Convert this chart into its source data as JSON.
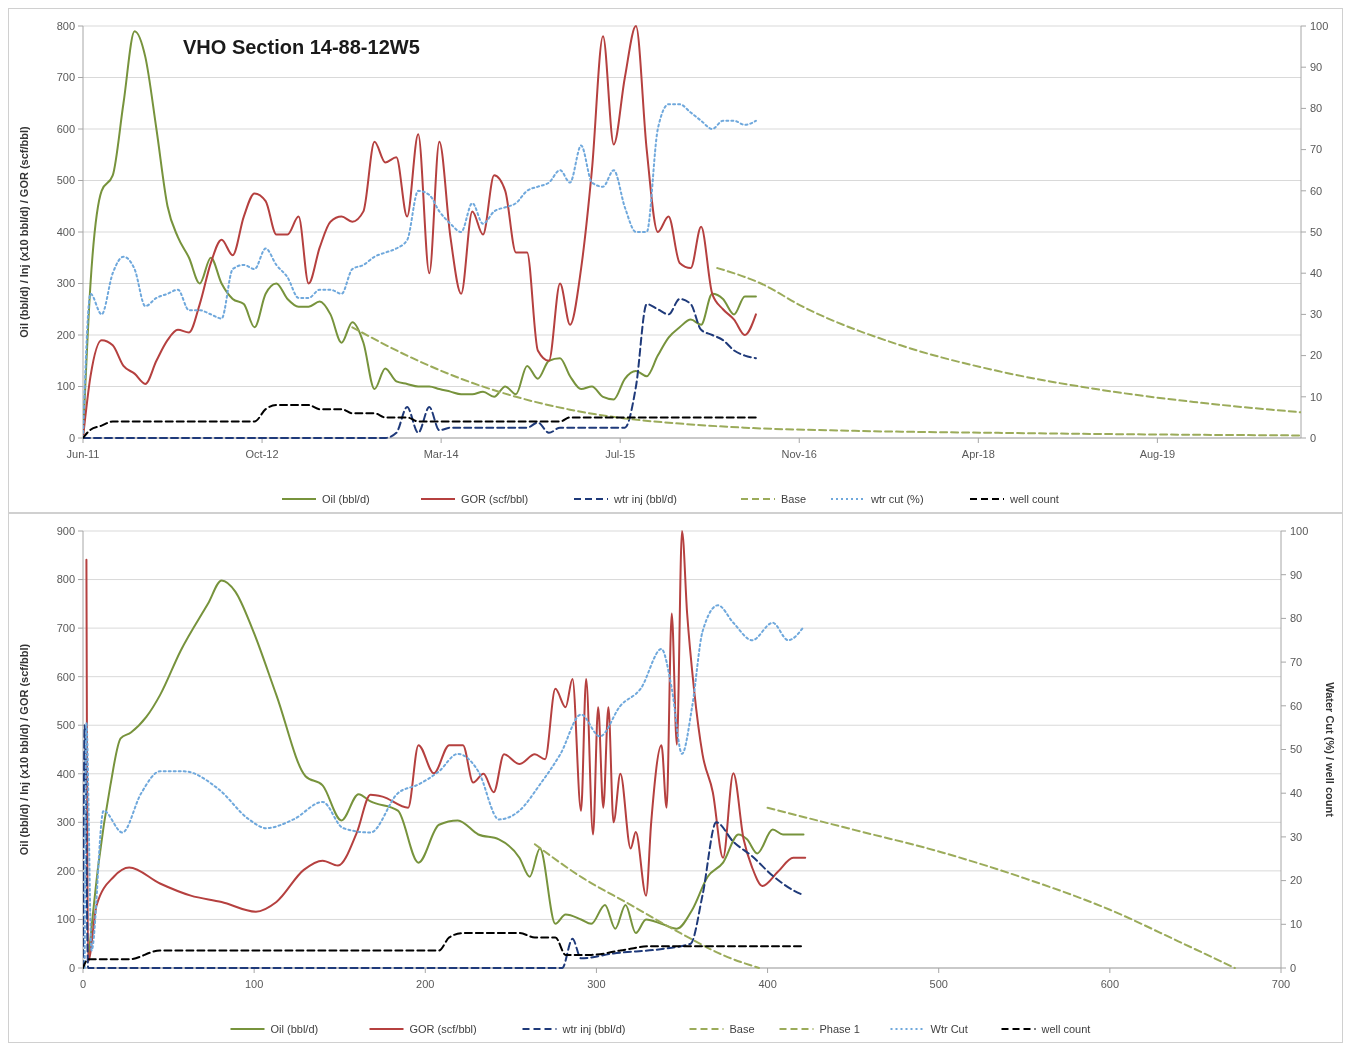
{
  "chart_data": [
    {
      "type": "line",
      "title": "VHO Section 14-88-12W5",
      "ylabel": "Oil (bbl/d) / Inj (x10 bbl/d) / GOR (scf/bbl)",
      "xlim": [
        "2011-06-10",
        "2020-10-01"
      ],
      "xticks": [
        {
          "value": "2011-06-10",
          "label": "Jun-11"
        },
        {
          "value": "2012-10-22",
          "label": "Oct-12"
        },
        {
          "value": "2014-03-06",
          "label": "Mar-14"
        },
        {
          "value": "2015-07-19",
          "label": "Jul-15"
        },
        {
          "value": "2016-11-30",
          "label": "Nov-16"
        },
        {
          "value": "2018-04-14",
          "label": "Apr-18"
        },
        {
          "value": "2019-08-27",
          "label": "Aug-19"
        }
      ],
      "ylim": [
        0,
        800
      ],
      "yticks": [
        0,
        100,
        200,
        300,
        400,
        500,
        600,
        700,
        800
      ],
      "y2lim": [
        0,
        100
      ],
      "y2ticks": [
        0,
        10,
        20,
        30,
        40,
        50,
        60,
        70,
        80,
        90,
        100
      ],
      "grid": "y",
      "legend": "bottom",
      "x": [
        "2011-06-10",
        "2011-07",
        "2011-08",
        "2011-09",
        "2011-10",
        "2011-11",
        "2011-12",
        "2012-01",
        "2012-02",
        "2012-03",
        "2012-04",
        "2012-05",
        "2012-06",
        "2012-07",
        "2012-08",
        "2012-09",
        "2012-10",
        "2012-11",
        "2012-12",
        "2013-01",
        "2013-02",
        "2013-03",
        "2013-04",
        "2013-05",
        "2013-06",
        "2013-07",
        "2013-08",
        "2013-09",
        "2013-10",
        "2013-11",
        "2013-12",
        "2014-01",
        "2014-02",
        "2014-03",
        "2014-04",
        "2014-05",
        "2014-06",
        "2014-07",
        "2014-08",
        "2014-09",
        "2014-10",
        "2014-11",
        "2014-12",
        "2015-01",
        "2015-02",
        "2015-03",
        "2015-04",
        "2015-05",
        "2015-06",
        "2015-07",
        "2015-08",
        "2015-09",
        "2015-10",
        "2015-11",
        "2015-12",
        "2016-01",
        "2016-02",
        "2016-03",
        "2016-04",
        "2016-05",
        "2016-06",
        "2016-07",
        "2016-08"
      ],
      "series": [
        {
          "name": "Oil (bbl/d)",
          "color": "#77933c",
          "line_style": "solid",
          "values": [
            0,
            300,
            480,
            510,
            650,
            790,
            740,
            600,
            450,
            390,
            350,
            300,
            350,
            300,
            270,
            260,
            215,
            280,
            300,
            270,
            255,
            255,
            265,
            240,
            185,
            225,
            185,
            95,
            135,
            110,
            105,
            100,
            100,
            95,
            90,
            85,
            85,
            90,
            80,
            100,
            85,
            140,
            115,
            150,
            155,
            120,
            95,
            100,
            80,
            75,
            115,
            130,
            120,
            160,
            195,
            215,
            230,
            220,
            280,
            270,
            240,
            275,
            275
          ]
        },
        {
          "name": "GOR (scf/bbl)",
          "color": "#b5403f",
          "line_style": "solid",
          "values": [
            0,
            120,
            190,
            180,
            140,
            125,
            105,
            150,
            190,
            210,
            205,
            260,
            340,
            385,
            355,
            430,
            475,
            460,
            395,
            395,
            430,
            300,
            370,
            420,
            430,
            420,
            440,
            575,
            535,
            545,
            430,
            590,
            320,
            575,
            390,
            280,
            440,
            395,
            510,
            480,
            360,
            360,
            170,
            150,
            300,
            220,
            330,
            520,
            780,
            570,
            700,
            800,
            560,
            400,
            430,
            340,
            330,
            410,
            280,
            250,
            230,
            200,
            240
          ]
        },
        {
          "name": "wtr inj (bbl/d)",
          "color": "#1f3a7a",
          "line_style": "dashed",
          "values": [
            0,
            0,
            0,
            0,
            0,
            0,
            0,
            0,
            0,
            0,
            0,
            0,
            0,
            0,
            0,
            0,
            0,
            0,
            0,
            0,
            0,
            0,
            0,
            0,
            0,
            0,
            0,
            0,
            0,
            10,
            60,
            10,
            60,
            15,
            20,
            20,
            20,
            20,
            20,
            20,
            20,
            20,
            30,
            10,
            20,
            20,
            20,
            20,
            20,
            20,
            20,
            100,
            260,
            250,
            240,
            270,
            260,
            210,
            200,
            190,
            170,
            160,
            155
          ]
        },
        {
          "name": "Base",
          "color": "#9bab5a",
          "line_style": "dashed",
          "x": [
            "2013-07",
            "2013-12",
            "2014-05",
            "2014-10",
            "2015-03",
            "2015-08",
            "2016-01",
            "2016-07",
            "2017-04-25",
            "2018-06-08",
            "2019-07-22",
            "2020-10-01"
          ],
          "values": [
            215,
            160,
            115,
            80,
            55,
            38,
            28,
            20,
            14,
            10,
            7,
            5
          ]
        },
        {
          "color": "#9bab5a",
          "line_style": "dashed",
          "x": [
            "2016-04-15",
            "2016-08-15",
            "2016-12-10",
            "2017-09-09",
            "2018-06-08",
            "2019-03-08",
            "2019-12-06",
            "2020-10-01"
          ],
          "values": [
            330,
            300,
            255,
            180,
            130,
            95,
            70,
            50
          ]
        },
        {
          "name": "wtr cut (%)",
          "color": "#6fa8dc",
          "line_style": "dotted",
          "axis": "y2",
          "values": [
            0,
            35,
            30,
            40,
            44,
            41,
            32,
            34,
            35,
            36,
            31,
            31,
            30,
            29,
            41,
            42,
            41,
            46,
            42,
            39,
            34,
            34,
            36,
            36,
            35,
            41,
            42,
            44,
            45,
            46,
            48,
            60,
            59,
            55,
            52,
            50,
            57,
            52,
            55,
            56,
            57,
            60,
            61,
            62,
            65,
            62,
            71,
            62,
            61,
            65,
            56,
            50,
            50,
            75,
            81,
            81,
            79,
            77,
            75,
            77,
            77,
            76,
            77
          ]
        },
        {
          "name": "well count",
          "color": "#000000",
          "line_style": "dashed",
          "axis": "y2",
          "values": [
            0,
            2,
            3,
            4,
            4,
            4,
            4,
            4,
            4,
            4,
            4,
            4,
            4,
            4,
            4,
            4,
            4,
            7,
            8,
            8,
            8,
            8,
            7,
            7,
            7,
            6,
            6,
            6,
            5,
            5,
            5,
            4,
            4,
            4,
            4,
            4,
            4,
            4,
            4,
            4,
            4,
            4,
            4,
            4,
            4,
            5,
            5,
            5,
            5,
            5,
            5,
            5,
            5,
            5,
            5,
            5,
            5,
            5,
            5,
            5,
            5,
            5,
            5
          ]
        }
      ]
    },
    {
      "type": "line",
      "ylabel": "Oil (bbl/d) / Inj (x10 bbl/d) / GOR (scf/bbl)",
      "y2label": "Water Cut (%) / well count",
      "xlim": [
        0,
        700
      ],
      "xticks": [
        0,
        100,
        200,
        300,
        400,
        500,
        600,
        700
      ],
      "ylim": [
        0,
        900
      ],
      "yticks": [
        0,
        100,
        200,
        300,
        400,
        500,
        600,
        700,
        800,
        900
      ],
      "y2lim": [
        0,
        100
      ],
      "y2ticks": [
        0,
        10,
        20,
        30,
        40,
        50,
        60,
        70,
        80,
        90,
        100
      ],
      "grid": "y",
      "legend": "bottom",
      "series": [
        {
          "name": "Oil (bbl/d)",
          "color": "#77933c",
          "line_style": "solid",
          "x": [
            3,
            9,
            16,
            22,
            28,
            37,
            45,
            57,
            73,
            81,
            89,
            99,
            113,
            130,
            140,
            151,
            161,
            168,
            184,
            196,
            208,
            219,
            231,
            243,
            255,
            261,
            267,
            276,
            282,
            291,
            297,
            305,
            311,
            317,
            323,
            329,
            338,
            347,
            356,
            365,
            374,
            383,
            388,
            394,
            403,
            409,
            421
          ],
          "values": [
            14,
            213,
            376,
            473,
            485,
            517,
            562,
            653,
            750,
            798,
            775,
            698,
            562,
            395,
            376,
            304,
            358,
            343,
            324,
            217,
            295,
            304,
            275,
            265,
            227,
            188,
            246,
            91,
            110,
            100,
            91,
            130,
            81,
            130,
            72,
            100,
            91,
            81,
            120,
            188,
            217,
            275,
            265,
            236,
            285,
            275,
            275
          ]
        },
        {
          "name": "GOR (scf/bbl)",
          "color": "#b5403f",
          "line_style": "solid",
          "x": [
            2,
            3,
            8,
            18,
            27,
            45,
            63,
            81,
            101,
            113,
            129,
            140,
            149,
            160,
            168,
            175,
            190,
            196,
            205,
            214,
            222,
            228,
            234,
            240,
            246,
            255,
            264,
            270,
            276,
            282,
            286,
            291,
            294,
            298,
            301,
            304,
            307,
            310,
            314,
            320,
            323,
            329,
            332,
            338,
            341,
            344,
            347,
            350,
            353,
            357,
            362,
            368,
            374,
            380,
            386,
            391,
            397,
            406,
            415,
            422
          ],
          "values": [
            841,
            14,
            130,
            188,
            207,
            174,
            149,
            136,
            116,
            136,
            202,
            221,
            211,
            279,
            357,
            353,
            330,
            459,
            401,
            459,
            459,
            382,
            400,
            362,
            440,
            420,
            440,
            430,
            575,
            537,
            595,
            324,
            595,
            275,
            537,
            330,
            537,
            300,
            400,
            246,
            280,
            149,
            300,
            459,
            330,
            730,
            460,
            900,
            730,
            575,
            440,
            362,
            227,
            401,
            265,
            207,
            169,
            198,
            227,
            227
          ]
        },
        {
          "name": "wtr inj (bbl/d)",
          "color": "#1f3a7a",
          "line_style": "dashed",
          "x": [
            0,
            1,
            3,
            280,
            286,
            291,
            310,
            340,
            355,
            362,
            370,
            380,
            391,
            403,
            415,
            421
          ],
          "values": [
            0,
            500,
            0,
            0,
            60,
            20,
            30,
            40,
            50,
            150,
            300,
            260,
            230,
            190,
            160,
            150
          ]
        },
        {
          "name": "Base",
          "color": "#9bab5a",
          "line_style": "dashed",
          "x": [
            264,
            290,
            320,
            350,
            375,
            395
          ],
          "values": [
            255,
            190,
            130,
            70,
            25,
            0
          ]
        },
        {
          "name": "Phase 1",
          "color": "#9bab5a",
          "line_style": "dashed",
          "x": [
            400,
            450,
            500,
            550,
            600,
            640,
            673
          ],
          "values": [
            330,
            285,
            240,
            185,
            120,
            55,
            0
          ]
        },
        {
          "name": "Wtr Cut",
          "color": "#6fa8dc",
          "line_style": "dotted",
          "axis": "y2",
          "x": [
            1,
            2,
            5,
            12,
            23,
            34,
            45,
            59,
            79,
            97,
            107,
            123,
            140,
            152,
            168,
            184,
            196,
            208,
            219,
            231,
            243,
            255,
            267,
            279,
            291,
            302,
            314,
            326,
            338,
            344,
            350,
            356,
            362,
            371,
            380,
            391,
            403,
            412,
            421
          ],
          "values": [
            0,
            56,
            4,
            36,
            31,
            40,
            45,
            45,
            41,
            34,
            32,
            34,
            38,
            32,
            31,
            40,
            42,
            45,
            49,
            45,
            34,
            36,
            42,
            49,
            58,
            53,
            60,
            64,
            73,
            64,
            49,
            60,
            77,
            83,
            79,
            75,
            79,
            75,
            78
          ]
        },
        {
          "name": "well count",
          "color": "#000000",
          "line_style": "dashed",
          "axis": "y2",
          "x": [
            0,
            3,
            27,
            45,
            208,
            214,
            222,
            255,
            264,
            276,
            282,
            297,
            314,
            332,
            421
          ],
          "values": [
            0,
            2,
            2,
            4,
            4,
            7,
            8,
            8,
            7,
            7,
            3,
            3,
            4,
            5,
            5
          ]
        }
      ]
    }
  ]
}
